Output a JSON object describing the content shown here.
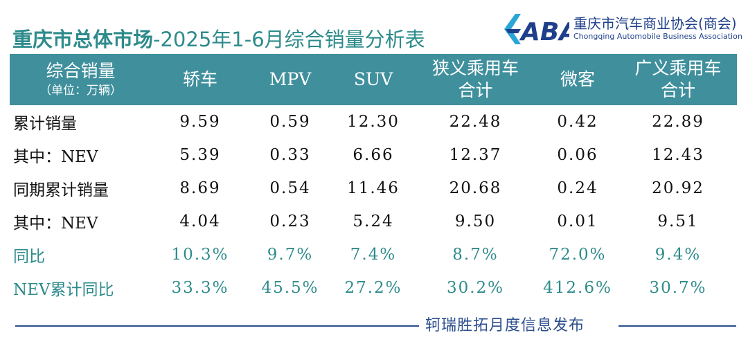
{
  "title": {
    "main": "重庆市总体市场",
    "rest": "-2025年1-6月综合销量分析表"
  },
  "logo": {
    "mark_text": "CABA",
    "name_cn": "重庆市汽车商业协会(商会)",
    "name_en": "Chongqing Automobile Business Association"
  },
  "table": {
    "header": {
      "label": "综合销量",
      "unit": "（单位：万辆）",
      "columns": [
        {
          "line1": "轿车",
          "line2": ""
        },
        {
          "line1": "MPV",
          "line2": ""
        },
        {
          "line1": "SUV",
          "line2": ""
        },
        {
          "line1": "狭义乘用车",
          "line2": "合计"
        },
        {
          "line1": "微客",
          "line2": ""
        },
        {
          "line1": "广义乘用车",
          "line2": "合计"
        }
      ]
    },
    "rows": [
      {
        "label": "累计销量",
        "values": [
          "9.59",
          "0.59",
          "12.30",
          "22.48",
          "0.42",
          "22.89"
        ]
      },
      {
        "label": "其中：NEV",
        "values": [
          "5.39",
          "0.33",
          "6.66",
          "12.37",
          "0.06",
          "12.43"
        ]
      },
      {
        "label": "同期累计销量",
        "values": [
          "8.69",
          "0.54",
          "11.46",
          "20.68",
          "0.24",
          "20.92"
        ]
      },
      {
        "label": "其中：NEV",
        "values": [
          "4.04",
          "0.23",
          "5.24",
          "9.50",
          "0.01",
          "9.51"
        ]
      },
      {
        "label": "同比",
        "values": [
          "10.3%",
          "9.7%",
          "7.4%",
          "8.7%",
          "72.0%",
          "9.4%"
        ]
      },
      {
        "label": "NEV累计同比",
        "values": [
          "33.3%",
          "45.5%",
          "27.2%",
          "30.2%",
          "412.6%",
          "30.7%"
        ]
      }
    ]
  },
  "footer": {
    "text": "轲瑞胜拓月度信息发布"
  },
  "colors": {
    "header_bg": "#3f8f9c",
    "title": "#2e8b8b",
    "percent_rows": "#2e8b8b",
    "footer": "#2b4e8c",
    "logo": "#1f3f8a",
    "logo_accent": "#2aa5d8"
  }
}
